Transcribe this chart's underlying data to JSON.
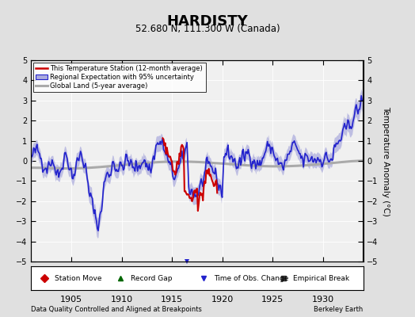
{
  "title": "HARDISTY",
  "subtitle": "52.680 N, 111.300 W (Canada)",
  "ylabel": "Temperature Anomaly (°C)",
  "xlabel_bottom": "Data Quality Controlled and Aligned at Breakpoints",
  "xlabel_bottom_right": "Berkeley Earth",
  "ylim": [
    -5,
    5
  ],
  "xlim": [
    1901.0,
    1934.0
  ],
  "xticks": [
    1905,
    1910,
    1915,
    1920,
    1925,
    1930
  ],
  "yticks": [
    -5,
    -4,
    -3,
    -2,
    -1,
    0,
    1,
    2,
    3,
    4,
    5
  ],
  "background_color": "#e0e0e0",
  "plot_bg_color": "#f0f0f0",
  "regional_color": "#2222cc",
  "regional_fill_color": "#aaaadd",
  "station_color": "#cc0000",
  "global_color": "#aaaaaa",
  "global_lw": 2.2,
  "regional_lw": 1.2,
  "station_lw": 1.5,
  "bottom_legend": [
    {
      "label": "Station Move",
      "marker": "D",
      "color": "#cc0000"
    },
    {
      "label": "Record Gap",
      "marker": "^",
      "color": "#006600"
    },
    {
      "label": "Time of Obs. Change",
      "marker": "v",
      "color": "#2222cc"
    },
    {
      "label": "Empirical Break",
      "marker": "s",
      "color": "#333333"
    }
  ],
  "time_obs_change_year": 1916.5,
  "seed": 42,
  "n_regional": 396,
  "t_start": 1901.0,
  "t_step": 0.0833
}
